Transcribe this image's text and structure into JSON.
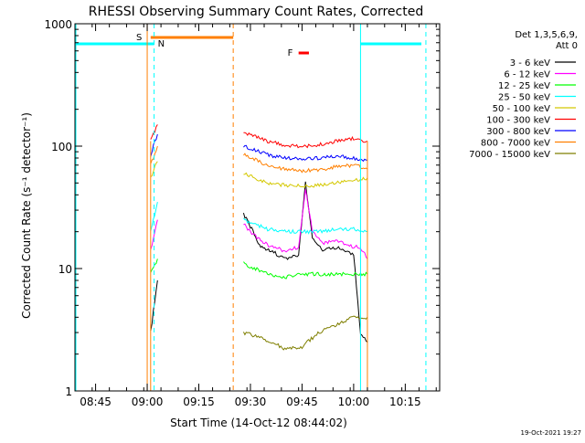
{
  "colors": {
    "band_3_6": "#000000",
    "band_6_12": "#ff00ff",
    "band_12_25": "#00ff00",
    "band_25_50": "#00ffff",
    "band_50_100": "#d4c800",
    "band_100_300": "#ff0000",
    "band_300_800": "#0000ff",
    "band_800_7000": "#ff7f00",
    "band_7000_15000": "#7f7f00",
    "saa_bar": "#ff7f00",
    "night_bar": "#00ffff",
    "flare_bar": "#ff0000"
  },
  "chart_data": {
    "type": "line",
    "title": "RHESSI Observing Summary Count Rates, Corrected",
    "xlabel": "Start Time (14-Oct-12 08:44:02)",
    "ylabel": "Corrected Count Rate (s⁻¹ detector⁻¹)",
    "y_scale": "log",
    "ylim": [
      1,
      1000
    ],
    "xlim": [
      "08:39",
      "10:25"
    ],
    "x_ticks": [
      "08:45",
      "09:00",
      "09:15",
      "09:30",
      "09:45",
      "10:00",
      "10:15"
    ],
    "y_ticks": [
      "1",
      "10",
      "100",
      "1000"
    ],
    "legend_header": [
      "Det 1,3,5,6,9,",
      "Att 0"
    ],
    "legend_position": "right",
    "series": [
      {
        "name": "3 - 6 keV",
        "color_key": "band_3_6",
        "x": [
          "09:01",
          "09:03",
          "09:28",
          "09:30",
          "09:33",
          "09:36",
          "09:40",
          "09:44",
          "09:46",
          "09:48",
          "09:51",
          "09:54",
          "09:58",
          "10:00",
          "10:02",
          "10:04"
        ],
        "y": [
          3,
          8,
          28,
          22,
          15,
          14,
          12,
          13,
          50,
          18,
          14,
          15,
          14,
          13,
          3,
          2.5
        ]
      },
      {
        "name": "6 - 12 keV",
        "color_key": "band_6_12",
        "x": [
          "09:01",
          "09:03",
          "09:28",
          "09:30",
          "09:33",
          "09:36",
          "09:40",
          "09:44",
          "09:46",
          "09:48",
          "09:51",
          "09:54",
          "09:58",
          "10:00",
          "10:02",
          "10:04"
        ],
        "y": [
          14,
          25,
          23,
          20,
          17,
          15,
          14,
          15,
          45,
          20,
          16,
          17,
          16,
          15,
          15,
          12
        ]
      },
      {
        "name": "12 - 25 keV",
        "color_key": "band_12_25",
        "x": [
          "09:01",
          "09:03",
          "09:28",
          "09:35",
          "09:40",
          "09:45",
          "09:50",
          "09:55",
          "10:00",
          "10:04"
        ],
        "y": [
          9,
          12,
          11,
          9,
          8.5,
          9,
          9,
          9,
          9,
          9
        ]
      },
      {
        "name": "25 - 50 keV",
        "color_key": "band_25_50",
        "x": [
          "09:01",
          "09:03",
          "09:28",
          "09:35",
          "09:40",
          "09:45",
          "09:50",
          "09:55",
          "10:00",
          "10:04"
        ],
        "y": [
          20,
          35,
          25,
          21,
          20,
          20,
          20,
          21,
          21,
          20
        ]
      },
      {
        "name": "50 - 100 keV",
        "color_key": "band_50_100",
        "x": [
          "09:01",
          "09:03",
          "09:28",
          "09:35",
          "09:40",
          "09:45",
          "09:50",
          "09:55",
          "10:00",
          "10:04"
        ],
        "y": [
          55,
          75,
          60,
          50,
          48,
          47,
          48,
          50,
          52,
          55
        ]
      },
      {
        "name": "100 - 300 keV",
        "color_key": "band_100_300",
        "x": [
          "09:01",
          "09:03",
          "09:28",
          "09:35",
          "09:40",
          "09:45",
          "09:50",
          "09:55",
          "10:00",
          "10:04"
        ],
        "y": [
          110,
          150,
          130,
          110,
          102,
          100,
          103,
          110,
          115,
          110
        ]
      },
      {
        "name": "300 - 800 keV",
        "color_key": "band_300_800",
        "x": [
          "09:01",
          "09:03",
          "09:28",
          "09:35",
          "09:40",
          "09:45",
          "09:50",
          "09:55",
          "10:00",
          "10:04"
        ],
        "y": [
          85,
          125,
          100,
          85,
          80,
          78,
          80,
          83,
          80,
          77
        ]
      },
      {
        "name": "800 - 7000 keV",
        "color_key": "band_800_7000",
        "x": [
          "09:01",
          "09:03",
          "09:28",
          "09:35",
          "09:40",
          "09:45",
          "09:50",
          "09:55",
          "10:00",
          "10:04"
        ],
        "y": [
          70,
          100,
          85,
          70,
          65,
          63,
          64,
          68,
          70,
          65
        ]
      },
      {
        "name": "7000 - 15000 keV",
        "color_key": "band_7000_15000",
        "x": [
          "09:28",
          "09:35",
          "09:40",
          "09:45",
          "09:50",
          "09:55",
          "10:00",
          "10:04"
        ],
        "y": [
          3,
          2.6,
          2.2,
          2.3,
          3,
          3.5,
          4,
          4
        ]
      }
    ],
    "markers": {
      "saa_label": "S",
      "night_label": "N",
      "flare_label": "F"
    }
  },
  "footer_date": "19-Oct-2021 19:27"
}
